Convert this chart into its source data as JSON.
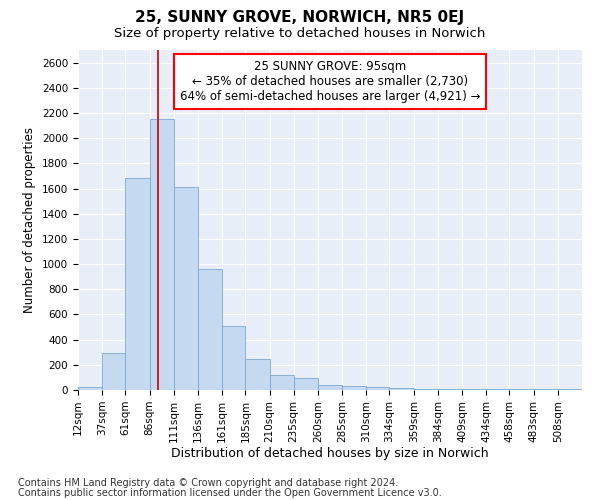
{
  "title": "25, SUNNY GROVE, NORWICH, NR5 0EJ",
  "subtitle": "Size of property relative to detached houses in Norwich",
  "xlabel": "Distribution of detached houses by size in Norwich",
  "ylabel": "Number of detached properties",
  "annotation_lines": [
    "25 SUNNY GROVE: 95sqm",
    "← 35% of detached houses are smaller (2,730)",
    "64% of semi-detached houses are larger (4,921) →"
  ],
  "bar_color": "#c5d9f0",
  "bar_edge_color": "#7aa8d4",
  "vline_color": "#cc0000",
  "vline_x": 95,
  "categories": [
    "12sqm",
    "37sqm",
    "61sqm",
    "86sqm",
    "111sqm",
    "136sqm",
    "161sqm",
    "185sqm",
    "210sqm",
    "235sqm",
    "260sqm",
    "285sqm",
    "310sqm",
    "334sqm",
    "359sqm",
    "384sqm",
    "409sqm",
    "434sqm",
    "458sqm",
    "483sqm",
    "508sqm"
  ],
  "bin_edges": [
    12,
    37,
    61,
    86,
    111,
    136,
    161,
    185,
    210,
    235,
    260,
    285,
    310,
    334,
    359,
    384,
    409,
    434,
    458,
    483,
    508,
    533
  ],
  "values": [
    20,
    295,
    1680,
    2150,
    1610,
    960,
    505,
    245,
    120,
    95,
    40,
    30,
    20,
    15,
    10,
    8,
    5,
    5,
    8,
    5,
    10
  ],
  "ylim": [
    0,
    2700
  ],
  "yticks": [
    0,
    200,
    400,
    600,
    800,
    1000,
    1200,
    1400,
    1600,
    1800,
    2000,
    2200,
    2400,
    2600
  ],
  "background_color": "#e8eef7",
  "grid_color": "#ffffff",
  "footer_lines": [
    "Contains HM Land Registry data © Crown copyright and database right 2024.",
    "Contains public sector information licensed under the Open Government Licence v3.0."
  ],
  "fig_bg": "#ffffff",
  "title_fontsize": 11,
  "subtitle_fontsize": 9.5,
  "axis_label_fontsize": 8.5,
  "tick_fontsize": 7.5,
  "annotation_fontsize": 8.5,
  "footer_fontsize": 7
}
